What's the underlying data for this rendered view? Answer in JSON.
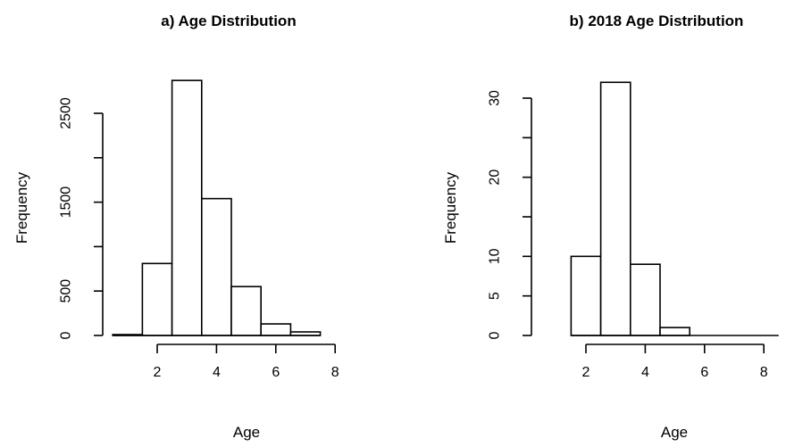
{
  "chart_data": [
    {
      "type": "bar",
      "title": "a) Age Distribution",
      "xlabel": "Age",
      "ylabel": "Frequency",
      "bin_edges": [
        0.5,
        1.5,
        2.5,
        3.5,
        4.5,
        5.5,
        6.5,
        7.5
      ],
      "values": [
        10,
        810,
        2870,
        1540,
        550,
        130,
        40
      ],
      "x_ticks": [
        2,
        4,
        6,
        8
      ],
      "x_tick_labels": [
        "2",
        "4",
        "6",
        "8"
      ],
      "x_axis_range": [
        2,
        8
      ],
      "y_ticks": [
        0,
        500,
        1000,
        1500,
        2000,
        2500
      ],
      "y_tick_labels": [
        "0",
        "500",
        "",
        "1500",
        "",
        "2500"
      ],
      "y_axis_range": [
        0,
        2500
      ],
      "ylim": [
        0,
        3000
      ]
    },
    {
      "type": "bar",
      "title": "b) 2018 Age Distribution",
      "xlabel": "Age",
      "ylabel": "Frequency",
      "bin_edges": [
        1.5,
        2.5,
        3.5,
        4.5,
        5.5,
        6.5,
        7.5,
        8.5
      ],
      "values": [
        10,
        32,
        9,
        1,
        0,
        0,
        0
      ],
      "x_ticks": [
        2,
        4,
        6,
        8
      ],
      "x_tick_labels": [
        "2",
        "4",
        "6",
        "8"
      ],
      "x_axis_range": [
        2,
        8
      ],
      "y_ticks": [
        0,
        5,
        10,
        15,
        20,
        25,
        30
      ],
      "y_tick_labels": [
        "0",
        "5",
        "10",
        "",
        "20",
        "",
        "30"
      ],
      "y_axis_range": [
        0,
        30
      ],
      "ylim": [
        0,
        33
      ]
    }
  ]
}
